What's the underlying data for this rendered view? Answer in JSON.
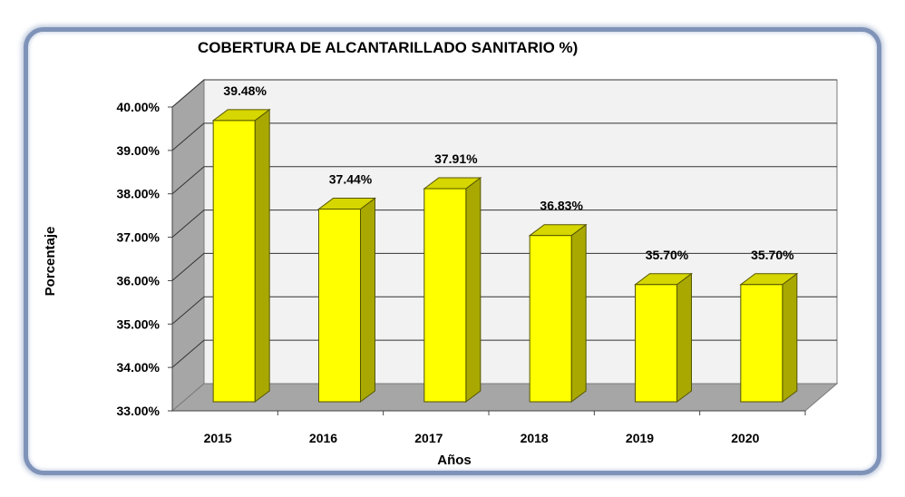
{
  "chart_data": {
    "type": "bar",
    "title": "COBERTURA DE ALCANTARILLADO SANITARIO %)",
    "xlabel": "Años",
    "ylabel": "Porcentaje",
    "categories": [
      "2015",
      "2016",
      "2017",
      "2018",
      "2019",
      "2020"
    ],
    "values": [
      39.48,
      37.44,
      37.91,
      36.83,
      35.7,
      35.7
    ],
    "value_labels": [
      "39.48%",
      "37.44%",
      "37.91%",
      "36.83%",
      "35.70%",
      "35.70%"
    ],
    "ylim": [
      33,
      40
    ],
    "yticks": [
      "33.00%",
      "34.00%",
      "35.00%",
      "36.00%",
      "37.00%",
      "38.00%",
      "39.00%",
      "40.00%"
    ],
    "grid": true,
    "legend": "none",
    "style": "3d-column",
    "colors": {
      "bar_front": "#ffff00",
      "bar_side": "#a8a800",
      "bar_top": "#d6d600",
      "wall": "#f2f2f2",
      "side_wall": "#a6a6a6",
      "floor": "#a6a6a6",
      "frame_border": "#7f93b8"
    }
  }
}
